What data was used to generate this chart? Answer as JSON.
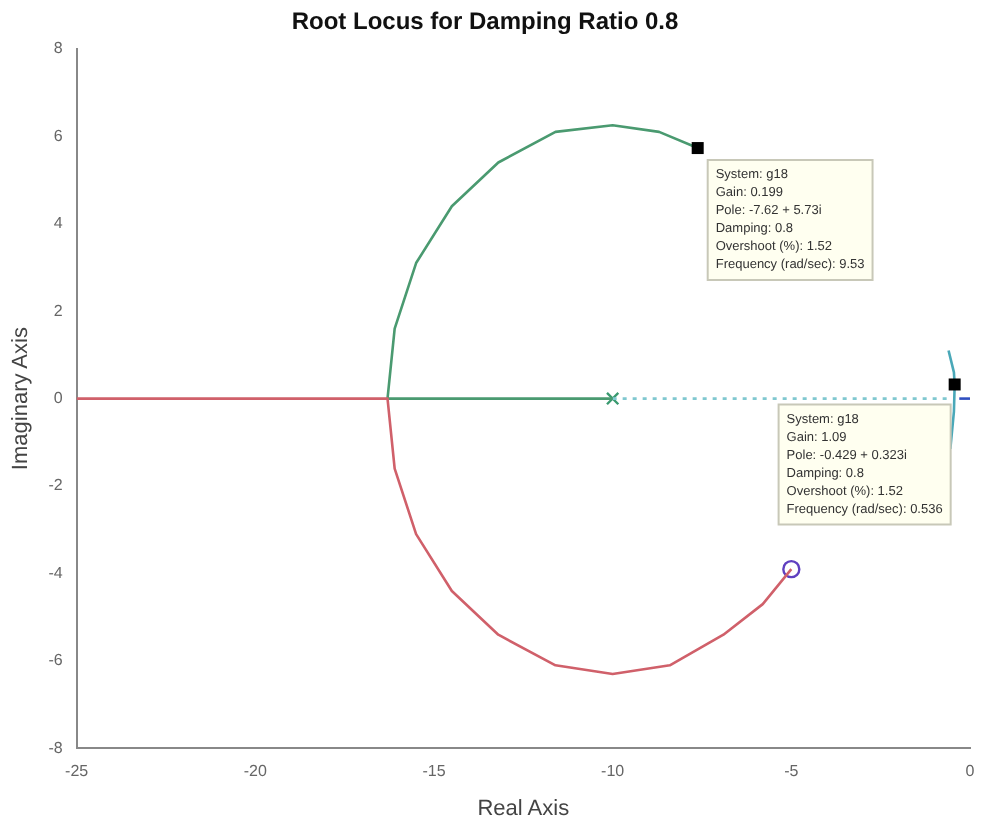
{
  "chart_data": {
    "type": "line",
    "title": "Root Locus for Damping Ratio 0.8",
    "xlabel": "Real Axis",
    "ylabel": "Imaginary Axis",
    "xlim": [
      -25,
      0
    ],
    "xticks": [
      -25,
      -20,
      -15,
      -10,
      -5,
      0
    ],
    "ylim": [
      -8,
      8
    ],
    "yticks": [
      -8,
      -6,
      -4,
      -2,
      0,
      2,
      4,
      6,
      8
    ],
    "grid": false,
    "legend": false,
    "series": [
      {
        "color": "#d0606a",
        "x": [
          -25,
          -16.3,
          -16.1,
          -15.5,
          -14.5,
          -13.2,
          -11.6,
          -10,
          -8.4,
          -6.9,
          -5.8,
          -5
        ],
        "values": [
          0,
          0,
          -1.6,
          -3.1,
          -4.4,
          -5.4,
          -6.1,
          -6.3,
          -6.1,
          -5.4,
          -4.7,
          -3.9
        ],
        "marker": "none"
      },
      {
        "color": "#4a9a70",
        "x": [
          -10,
          -16.3,
          -16.1,
          -15.5,
          -14.5,
          -13.2,
          -11.6,
          -10,
          -8.7,
          -7.62
        ],
        "values": [
          0,
          0,
          1.6,
          3.1,
          4.4,
          5.4,
          6.1,
          6.25,
          6.1,
          5.73
        ],
        "marker": "none"
      },
      {
        "color": "#80c8d0",
        "x": [
          -10,
          -0.5
        ],
        "values": [
          0,
          0
        ],
        "marker": "none",
        "line_style": "dotted"
      },
      {
        "color": "#4aa8b8",
        "x": [
          -0.6,
          -0.45,
          -0.429,
          -0.45,
          -0.55
        ],
        "values": [
          1.1,
          0.6,
          0.323,
          -0.3,
          -1.15
        ],
        "marker": "none"
      },
      {
        "color": "#3050c0",
        "x": [
          -0.3,
          0
        ],
        "values": [
          0,
          0
        ],
        "marker": "none"
      },
      {
        "type": "scatter",
        "color": "#3a9a70",
        "x": [
          -10
        ],
        "values": [
          0
        ],
        "marker": "cross"
      },
      {
        "type": "scatter",
        "color": "#6040c0",
        "x": [
          -5
        ],
        "values": [
          -3.9
        ],
        "marker": "circle"
      }
    ],
    "annotations": [
      {
        "text": "System: g18\nGain: 0.199\nPole: -7.62 + 5.73i\nDamping: 0.8\nOvershoot (%): 1.52\nFrequency (rad/sec): 9.53",
        "x": -7.62,
        "y": 5.73
      },
      {
        "text": "System: g18\nGain: 1.09\nPole: -0.429 + 0.323i\nDamping: 0.8\nOvershoot (%): 1.52\nFrequency (rad/sec): 0.536",
        "x": -0.429,
        "y": 0.323
      }
    ]
  }
}
